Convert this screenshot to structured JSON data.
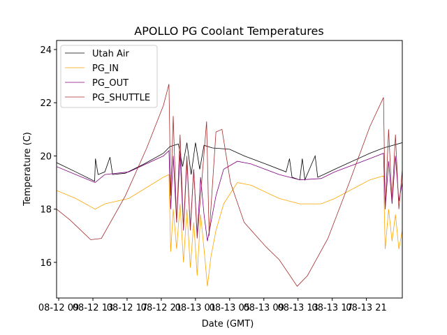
{
  "chart_data": {
    "type": "line",
    "title": "APOLLO PG Coolant Temperatures",
    "xlabel": "Date (GMT)",
    "ylabel": "Temperature (C)",
    "x_units": "hours since 08-12 09:00 GMT",
    "xlim": [
      -0.25,
      40.2
    ],
    "ylim": [
      14.66,
      24.34
    ],
    "xticks": [
      0,
      4,
      8,
      12,
      16,
      20,
      24,
      28,
      32,
      36
    ],
    "xtick_labels": [
      "08-12 09",
      "08-12 13",
      "08-12 17",
      "08-12 21",
      "08-13 01",
      "08-13 05",
      "08-13 09",
      "08-13 13",
      "08-13 17",
      "08-13 21"
    ],
    "yticks": [
      16,
      18,
      20,
      22,
      24
    ],
    "ytick_labels": [
      "16",
      "18",
      "20",
      "22",
      "24"
    ],
    "grid": false,
    "legend_position": "top-left",
    "series": [
      {
        "name": "Utah Air",
        "color": "#000000",
        "points": [
          [
            -0.25,
            19.75
          ],
          [
            2,
            19.4
          ],
          [
            4.2,
            19.05
          ],
          [
            4.3,
            19.9
          ],
          [
            4.6,
            19.3
          ],
          [
            5.4,
            19.4
          ],
          [
            6.0,
            19.95
          ],
          [
            6.3,
            19.3
          ],
          [
            7.8,
            19.35
          ],
          [
            10,
            19.7
          ],
          [
            12.25,
            20.1
          ],
          [
            13,
            20.35
          ],
          [
            14,
            20.45
          ],
          [
            14.5,
            19.6
          ],
          [
            15,
            20.5
          ],
          [
            15.5,
            19.3
          ],
          [
            16,
            20.5
          ],
          [
            16.5,
            19.5
          ],
          [
            17,
            20.4
          ],
          [
            18,
            20.3
          ],
          [
            20,
            20.25
          ],
          [
            21.7,
            20.0
          ],
          [
            24.2,
            19.7
          ],
          [
            26.6,
            19.4
          ],
          [
            27,
            19.9
          ],
          [
            27.3,
            19.2
          ],
          [
            28.2,
            19.1
          ],
          [
            28.5,
            19.9
          ],
          [
            28.8,
            19.1
          ],
          [
            30,
            20.0
          ],
          [
            30.3,
            19.2
          ],
          [
            31,
            19.3
          ],
          [
            32.3,
            19.5
          ],
          [
            36.4,
            20.1
          ],
          [
            38,
            20.3
          ],
          [
            40.2,
            20.5
          ]
        ]
      },
      {
        "name": "PG_IN",
        "color": "#FFA500",
        "points": [
          [
            -0.25,
            18.7
          ],
          [
            2,
            18.4
          ],
          [
            4.25,
            18.0
          ],
          [
            5.4,
            18.2
          ],
          [
            8.2,
            18.4
          ],
          [
            12.25,
            19.2
          ],
          [
            12.9,
            19.3
          ],
          [
            13.1,
            16.4
          ],
          [
            13.4,
            18.0
          ],
          [
            13.8,
            16.5
          ],
          [
            14.2,
            18.2
          ],
          [
            14.6,
            16.0
          ],
          [
            15.0,
            18.0
          ],
          [
            15.4,
            15.8
          ],
          [
            15.8,
            17.5
          ],
          [
            16.2,
            15.5
          ],
          [
            16.6,
            17.8
          ],
          [
            17.0,
            16.5
          ],
          [
            17.4,
            15.1
          ],
          [
            17.8,
            16.2
          ],
          [
            18.4,
            17.2
          ],
          [
            19.3,
            18.2
          ],
          [
            20.9,
            19.0
          ],
          [
            22.5,
            18.9
          ],
          [
            25.8,
            18.4
          ],
          [
            28.2,
            18.2
          ],
          [
            30.7,
            18.2
          ],
          [
            32.3,
            18.4
          ],
          [
            36.4,
            19.1
          ],
          [
            38.0,
            19.25
          ],
          [
            38.2,
            16.5
          ],
          [
            38.6,
            18.0
          ],
          [
            39.0,
            16.8
          ],
          [
            39.4,
            17.8
          ],
          [
            39.8,
            16.5
          ],
          [
            40.2,
            17.2
          ]
        ]
      },
      {
        "name": "PG_OUT",
        "color": "#800080",
        "points": [
          [
            -0.25,
            19.6
          ],
          [
            4.25,
            19.0
          ],
          [
            5.4,
            19.3
          ],
          [
            8.2,
            19.4
          ],
          [
            12.25,
            20.0
          ],
          [
            12.9,
            20.2
          ],
          [
            13.1,
            18.0
          ],
          [
            13.4,
            20.0
          ],
          [
            13.8,
            17.5
          ],
          [
            14.2,
            20.1
          ],
          [
            14.6,
            17.2
          ],
          [
            15.0,
            19.8
          ],
          [
            15.4,
            17.3
          ],
          [
            15.8,
            19.5
          ],
          [
            16.2,
            17.0
          ],
          [
            16.6,
            19.2
          ],
          [
            17.0,
            17.8
          ],
          [
            17.4,
            16.8
          ],
          [
            18.4,
            18.5
          ],
          [
            19.3,
            19.5
          ],
          [
            20.9,
            19.8
          ],
          [
            22.5,
            19.7
          ],
          [
            25.8,
            19.3
          ],
          [
            28.2,
            19.1
          ],
          [
            30.7,
            19.15
          ],
          [
            32.3,
            19.4
          ],
          [
            36.4,
            19.9
          ],
          [
            38.0,
            20.1
          ],
          [
            38.2,
            18.0
          ],
          [
            38.6,
            19.8
          ],
          [
            39.0,
            18.2
          ],
          [
            39.4,
            20.0
          ],
          [
            39.8,
            18.3
          ],
          [
            40.2,
            19.0
          ]
        ]
      },
      {
        "name": "PG_SHUTTLE",
        "color": "#A52A2A",
        "points": [
          [
            -0.25,
            18.0
          ],
          [
            1.3,
            17.6
          ],
          [
            3.75,
            16.85
          ],
          [
            5.0,
            16.9
          ],
          [
            7.8,
            18.5
          ],
          [
            10.3,
            20.3
          ],
          [
            12.25,
            21.9
          ],
          [
            12.9,
            22.7
          ],
          [
            13.1,
            18.5
          ],
          [
            13.4,
            21.5
          ],
          [
            13.8,
            17.5
          ],
          [
            14.2,
            20.8
          ],
          [
            14.6,
            17.3
          ],
          [
            15.0,
            20.0
          ],
          [
            15.4,
            17.2
          ],
          [
            15.8,
            19.5
          ],
          [
            16.2,
            16.9
          ],
          [
            16.6,
            18.5
          ],
          [
            17.3,
            21.3
          ],
          [
            17.6,
            17.0
          ],
          [
            18.4,
            20.9
          ],
          [
            19.1,
            21.0
          ],
          [
            20.1,
            19.0
          ],
          [
            21.7,
            17.5
          ],
          [
            24.2,
            16.6
          ],
          [
            25.8,
            16.1
          ],
          [
            27.9,
            15.1
          ],
          [
            29.1,
            15.5
          ],
          [
            31.5,
            16.9
          ],
          [
            34.0,
            19.0
          ],
          [
            36.4,
            21.1
          ],
          [
            38.0,
            22.2
          ],
          [
            38.2,
            18.0
          ],
          [
            38.6,
            21.0
          ],
          [
            39.0,
            18.3
          ],
          [
            39.4,
            20.8
          ],
          [
            39.8,
            18.0
          ],
          [
            40.2,
            19.5
          ]
        ]
      }
    ]
  }
}
